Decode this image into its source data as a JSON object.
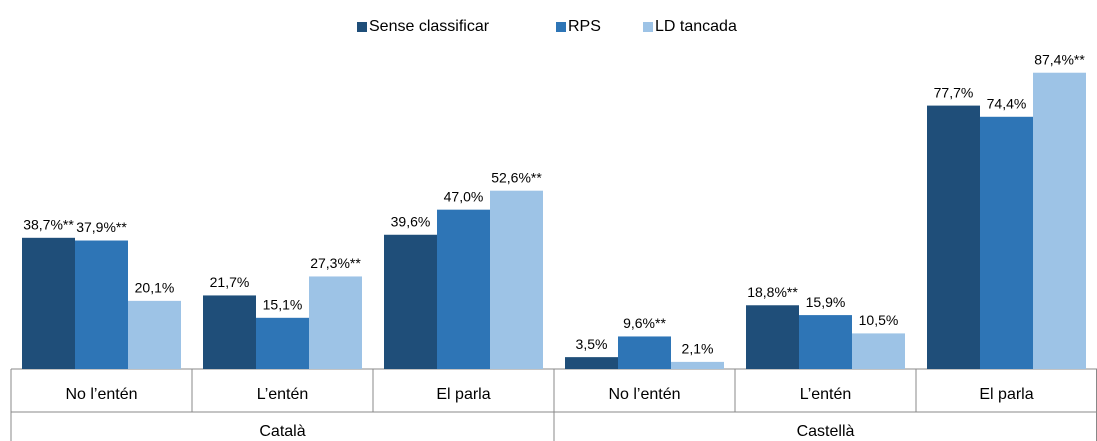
{
  "chart_data": {
    "type": "bar",
    "categories": [
      "No l’entén",
      "L’entén",
      "El parla",
      "No l’entén",
      "L’entén",
      "El parla"
    ],
    "groups": [
      "Català",
      "Castellà"
    ],
    "series": [
      {
        "name": "Sense classificar",
        "color": "#1f4e79",
        "values": [
          38.7,
          21.7,
          39.6,
          3.5,
          18.8,
          77.7
        ],
        "value_labels": [
          "38,7%**",
          "21,7%",
          "39,6%",
          "3,5%",
          "18,8%**",
          "77,7%"
        ]
      },
      {
        "name": "RPS",
        "color": "#2e75b6",
        "values": [
          37.9,
          15.1,
          47.0,
          9.6,
          15.9,
          74.4
        ],
        "value_labels": [
          "37,9%**",
          "15,1%",
          "47,0%",
          "9,6%**",
          "15,9%",
          "74,4%"
        ]
      },
      {
        "name": "LD tancada",
        "color": "#9dc3e6",
        "values": [
          20.1,
          27.3,
          52.6,
          2.1,
          10.5,
          87.4
        ],
        "value_labels": [
          "20,1%",
          "27,3%**",
          "52,6%**",
          "2,1%",
          "10,5%",
          "87,4%**"
        ]
      }
    ],
    "ylim": [
      0,
      100
    ],
    "legend": "top"
  }
}
